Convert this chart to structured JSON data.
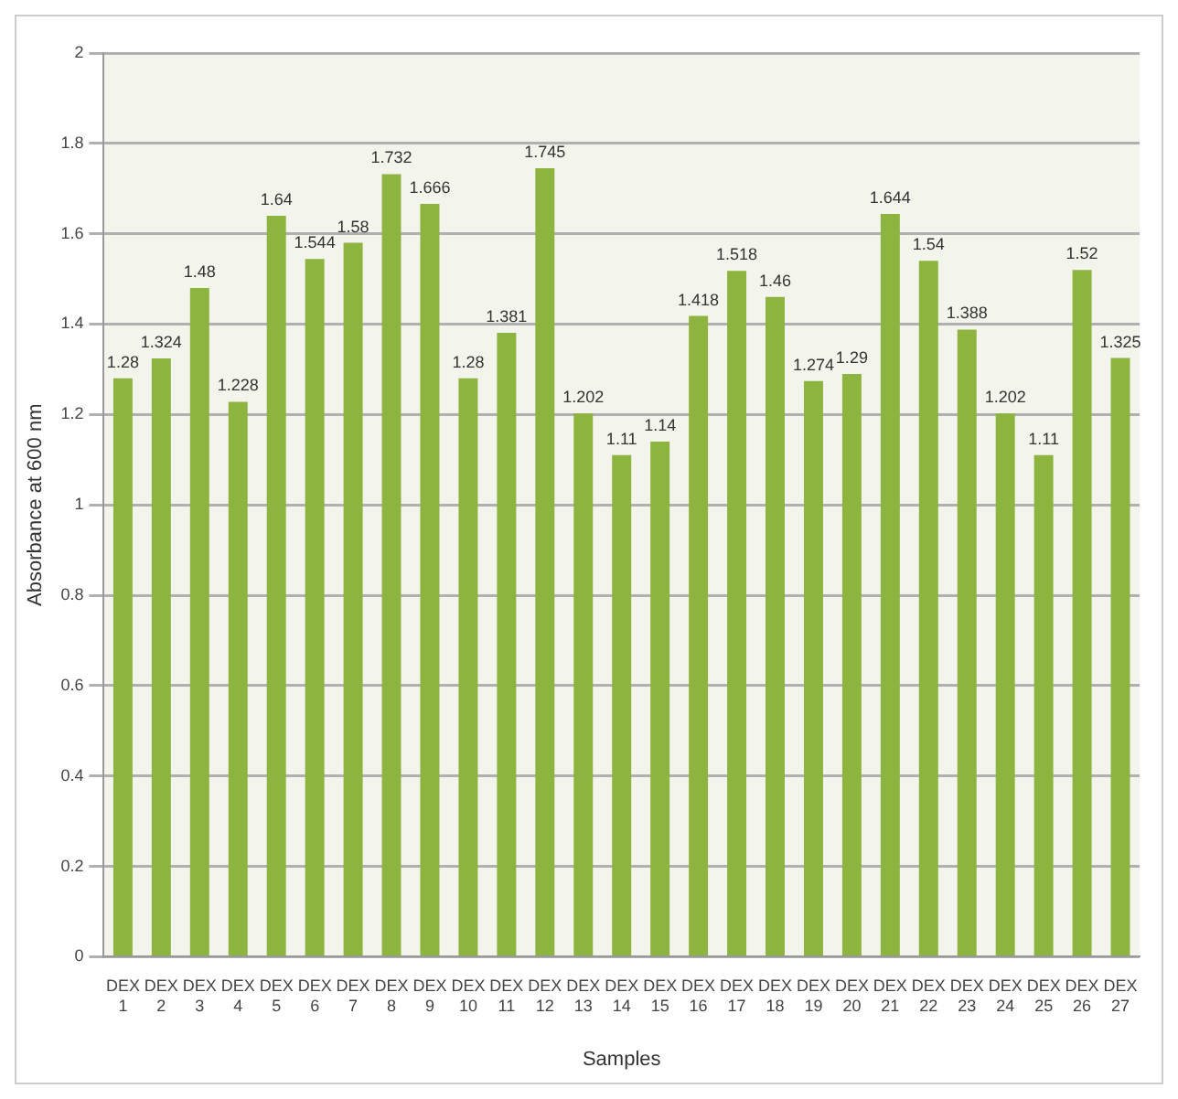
{
  "chart_data": {
    "type": "bar",
    "xlabel": "Samples",
    "ylabel": "Absorbance at 600 nm",
    "categories": [
      "DEX 1",
      "DEX 2",
      "DEX 3",
      "DEX 4",
      "DEX 5",
      "DEX 6",
      "DEX 7",
      "DEX 8",
      "DEX 9",
      "DEX 10",
      "DEX 11",
      "DEX 12",
      "DEX 13",
      "DEX 14",
      "DEX 15",
      "DEX 16",
      "DEX 17",
      "DEX 18",
      "DEX 19",
      "DEX 20",
      "DEX 21",
      "DEX 22",
      "DEX 23",
      "DEX 24",
      "DEX 25",
      "DEX 26",
      "DEX 27"
    ],
    "values": [
      1.28,
      1.324,
      1.48,
      1.228,
      1.64,
      1.544,
      1.58,
      1.732,
      1.666,
      1.28,
      1.381,
      1.745,
      1.202,
      1.11,
      1.14,
      1.418,
      1.518,
      1.46,
      1.274,
      1.29,
      1.644,
      1.54,
      1.388,
      1.202,
      1.11,
      1.52,
      1.325
    ],
    "color": "#8db43e",
    "ylim": [
      0,
      2
    ],
    "yticks": [
      0,
      0.2,
      0.4,
      0.6,
      0.8,
      1,
      1.2,
      1.4,
      1.6,
      1.8,
      2
    ],
    "grid": "y",
    "data_labels": true
  }
}
